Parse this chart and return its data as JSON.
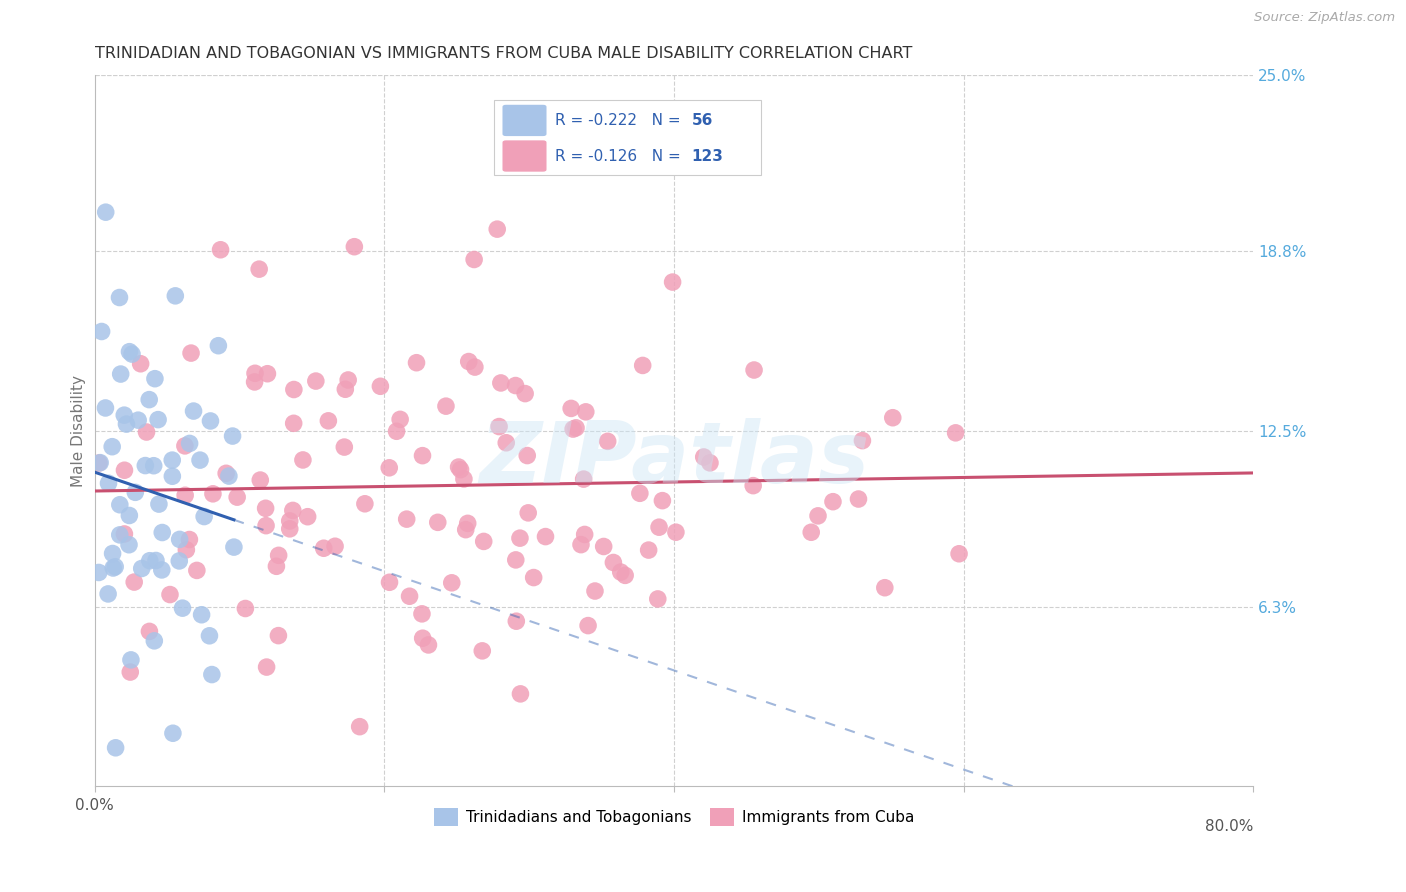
{
  "title": "TRINIDADIAN AND TOBAGONIAN VS IMMIGRANTS FROM CUBA MALE DISABILITY CORRELATION CHART",
  "source": "Source: ZipAtlas.com",
  "ylabel": "Male Disability",
  "x_min": 0.0,
  "x_max": 0.8,
  "y_min": 0.0,
  "y_max": 0.25,
  "y_tick_labels_right": [
    "25.0%",
    "18.8%",
    "12.5%",
    "6.3%"
  ],
  "y_tick_values_right": [
    0.25,
    0.188,
    0.125,
    0.063
  ],
  "group1_scatter_color": "#a8c4e8",
  "group2_scatter_color": "#f0a0b8",
  "group1_line_color": "#3060b0",
  "group2_line_color": "#c85070",
  "group1_R": -0.222,
  "group1_N": 56,
  "group2_R": -0.126,
  "group2_N": 123,
  "group1_label": "Trinidadians and Tobagonians",
  "group2_label": "Immigrants from Cuba",
  "watermark": "ZIPatlas",
  "background_color": "#ffffff",
  "grid_color": "#d0d0d0",
  "title_color": "#333333",
  "legend_text_color": "#3060b0",
  "right_label_color": "#55aadd",
  "source_color": "#aaaaaa",
  "seed1": 7,
  "seed2": 13
}
